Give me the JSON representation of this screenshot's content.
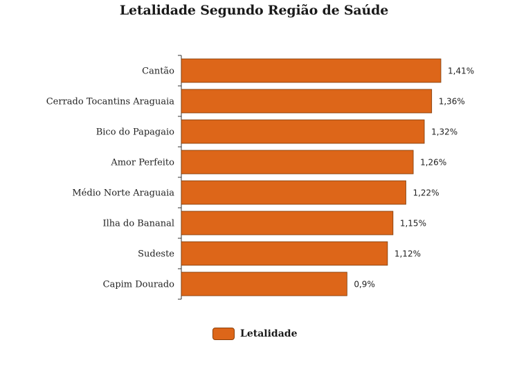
{
  "chart_data": {
    "type": "bar",
    "orientation": "horizontal",
    "title": "Letalidade Segundo Região de Saúde",
    "categories": [
      "Cantão",
      "Cerrado Tocantins Araguaia",
      "Bico do Papagaio",
      "Amor Perfeito",
      "Médio Norte Araguaia",
      "Ilha do Bananal",
      "Sudeste",
      "Capim Dourado"
    ],
    "series": [
      {
        "name": "Letalidade",
        "values": [
          1.41,
          1.36,
          1.32,
          1.26,
          1.22,
          1.15,
          1.12,
          0.9
        ],
        "value_labels": [
          "1,41%",
          "1,36%",
          "1,32%",
          "1,26%",
          "1,22%",
          "1,15%",
          "1,12%",
          "0,9%"
        ],
        "color": "#dd6619"
      }
    ],
    "xlim": [
      0,
      1.41
    ],
    "grid": false,
    "legend_position": "bottom-center"
  }
}
